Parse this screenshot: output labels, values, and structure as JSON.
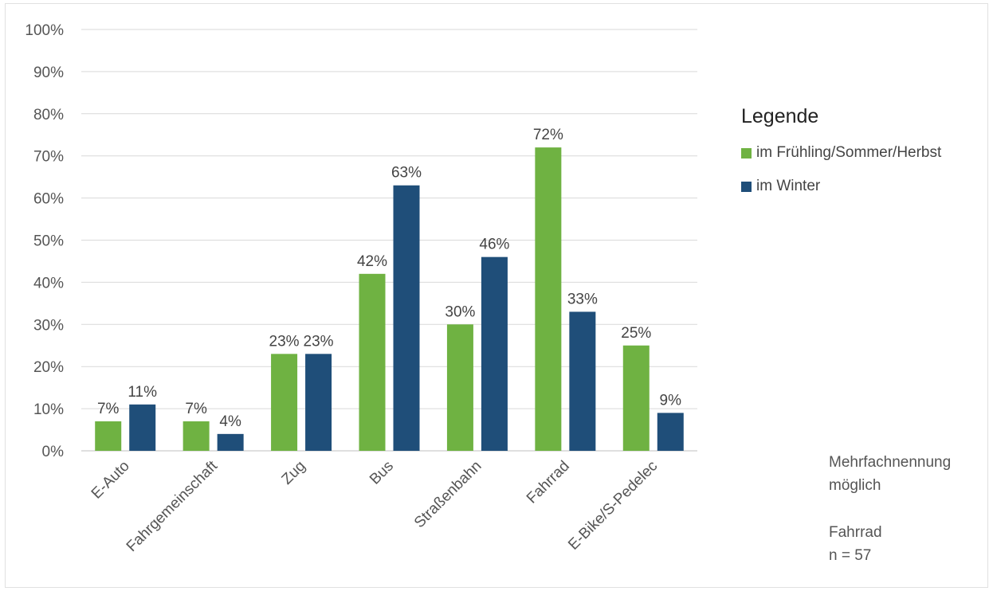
{
  "chart_data": {
    "type": "bar",
    "categories": [
      "E-Auto",
      "Fahrgemeinschaft",
      "Zug",
      "Bus",
      "Straßenbahn",
      "Fahrrad",
      "E-Bike/S-Pedelec"
    ],
    "series": [
      {
        "name": "im Frühling/Sommer/Herbst",
        "color": "#6fb242",
        "values": [
          7,
          7,
          23,
          42,
          30,
          72,
          25
        ],
        "labels": [
          "7%",
          "7%",
          "23%",
          "42%",
          "30%",
          "72%",
          "25%"
        ]
      },
      {
        "name": "im Winter",
        "color": "#1f4e79",
        "values": [
          11,
          4,
          23,
          63,
          46,
          33,
          9
        ],
        "labels": [
          "11%",
          "4%",
          "23%",
          "63%",
          "46%",
          "33%",
          "9%"
        ]
      }
    ],
    "ylim": [
      0,
      100
    ],
    "yticks": [
      0,
      10,
      20,
      30,
      40,
      50,
      60,
      70,
      80,
      90,
      100
    ],
    "ytick_labels": [
      "0%",
      "10%",
      "20%",
      "30%",
      "40%",
      "50%",
      "60%",
      "70%",
      "80%",
      "90%",
      "100%"
    ],
    "grid": true,
    "legend": {
      "title": "Legende",
      "placement": "right"
    }
  },
  "notes": {
    "multiple_line1": "Mehrfachnennung",
    "multiple_line2": "möglich",
    "sample_line1": "Fahrrad",
    "sample_line2": "n = 57"
  }
}
